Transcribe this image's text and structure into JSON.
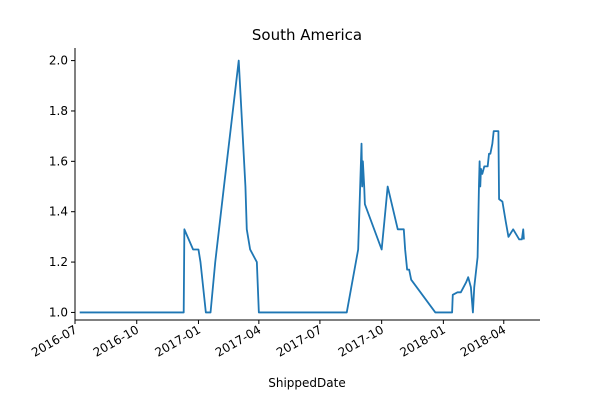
{
  "chart_data": {
    "type": "line",
    "title": "South America",
    "xlabel": "ShippedDate",
    "ylabel": "",
    "x_type": "date",
    "xlim": [
      "2016-07-01",
      "2018-05-25"
    ],
    "ylim": [
      0.97,
      2.05
    ],
    "x_ticks": [
      "2016-07",
      "2016-10",
      "2017-01",
      "2017-04",
      "2017-07",
      "2017-10",
      "2018-01",
      "2018-04"
    ],
    "x_tick_dates": [
      "2016-07-01",
      "2016-10-01",
      "2017-01-01",
      "2017-04-01",
      "2017-07-01",
      "2017-10-01",
      "2018-01-01",
      "2018-04-01"
    ],
    "y_ticks": [
      1.0,
      1.2,
      1.4,
      1.6,
      1.8,
      2.0
    ],
    "y_tick_labels": [
      "1.0",
      "1.2",
      "1.4",
      "1.6",
      "1.8",
      "2.0"
    ],
    "grid": false,
    "spines": [
      "left",
      "bottom"
    ],
    "color": "#1f77b4",
    "series": [
      {
        "name": "",
        "points": [
          [
            "2016-07-08",
            1.0
          ],
          [
            "2016-12-10",
            1.0
          ],
          [
            "2016-12-11",
            1.33
          ],
          [
            "2016-12-24",
            1.25
          ],
          [
            "2017-01-01",
            1.25
          ],
          [
            "2017-01-04",
            1.2
          ],
          [
            "2017-01-12",
            1.0
          ],
          [
            "2017-01-19",
            1.0
          ],
          [
            "2017-01-26",
            1.2
          ],
          [
            "2017-02-08",
            1.5
          ],
          [
            "2017-03-02",
            2.0
          ],
          [
            "2017-03-12",
            1.5
          ],
          [
            "2017-03-14",
            1.33
          ],
          [
            "2017-03-19",
            1.25
          ],
          [
            "2017-03-29",
            1.2
          ],
          [
            "2017-04-01",
            1.0
          ],
          [
            "2017-08-10",
            1.0
          ],
          [
            "2017-08-27",
            1.25
          ],
          [
            "2017-09-01",
            1.67
          ],
          [
            "2017-09-02",
            1.5
          ],
          [
            "2017-09-03",
            1.6
          ],
          [
            "2017-09-05",
            1.5
          ],
          [
            "2017-09-06",
            1.43
          ],
          [
            "2017-10-01",
            1.25
          ],
          [
            "2017-10-05",
            1.36
          ],
          [
            "2017-10-10",
            1.5
          ],
          [
            "2017-10-25",
            1.33
          ],
          [
            "2017-11-03",
            1.33
          ],
          [
            "2017-11-05",
            1.25
          ],
          [
            "2017-11-08",
            1.17
          ],
          [
            "2017-11-11",
            1.17
          ],
          [
            "2017-11-14",
            1.13
          ],
          [
            "2017-12-20",
            1.0
          ],
          [
            "2018-01-14",
            1.0
          ],
          [
            "2018-01-15",
            1.07
          ],
          [
            "2018-01-22",
            1.08
          ],
          [
            "2018-01-27",
            1.08
          ],
          [
            "2018-02-04",
            1.12
          ],
          [
            "2018-02-07",
            1.14
          ],
          [
            "2018-02-11",
            1.1
          ],
          [
            "2018-02-14",
            1.0
          ],
          [
            "2018-02-16",
            1.1
          ],
          [
            "2018-02-21",
            1.22
          ],
          [
            "2018-02-23",
            1.5
          ],
          [
            "2018-02-24",
            1.6
          ],
          [
            "2018-02-25",
            1.5
          ],
          [
            "2018-02-26",
            1.57
          ],
          [
            "2018-02-28",
            1.55
          ],
          [
            "2018-03-03",
            1.58
          ],
          [
            "2018-03-08",
            1.58
          ],
          [
            "2018-03-10",
            1.63
          ],
          [
            "2018-03-12",
            1.63
          ],
          [
            "2018-03-15",
            1.67
          ],
          [
            "2018-03-17",
            1.72
          ],
          [
            "2018-03-24",
            1.72
          ],
          [
            "2018-03-25",
            1.45
          ],
          [
            "2018-03-30",
            1.44
          ],
          [
            "2018-04-04",
            1.36
          ],
          [
            "2018-04-08",
            1.3
          ],
          [
            "2018-04-15",
            1.33
          ],
          [
            "2018-04-24",
            1.29
          ],
          [
            "2018-04-28",
            1.29
          ],
          [
            "2018-04-30",
            1.33
          ],
          [
            "2018-05-01",
            1.29
          ]
        ]
      }
    ]
  }
}
